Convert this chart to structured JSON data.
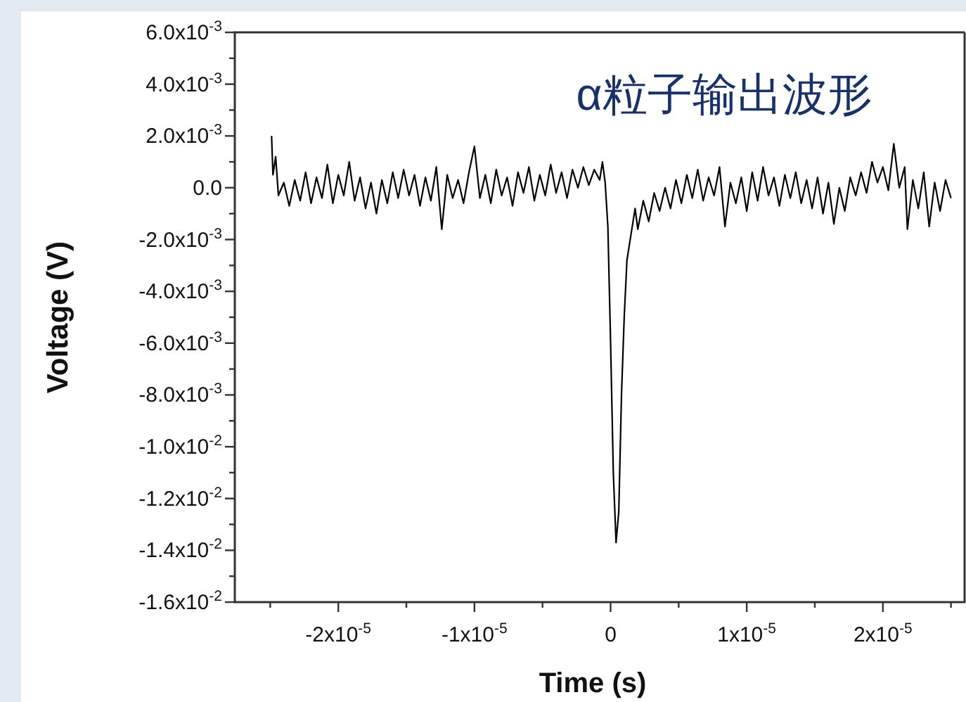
{
  "chart_data": {
    "type": "line",
    "title": "α粒子输出波形",
    "xlabel": "Time (s)",
    "ylabel": "Voltage (V)",
    "xlim": [
      -2.76e-05,
      2.6e-05
    ],
    "ylim": [
      -0.016,
      0.006
    ],
    "xticks": [
      {
        "value": -2.5e-05,
        "label": null
      },
      {
        "value": -2e-05,
        "label": "-2x10$^{-5}$"
      },
      {
        "value": -1.5e-05,
        "label": null
      },
      {
        "value": -1e-05,
        "label": "-1x10$^{-5}$"
      },
      {
        "value": -5e-06,
        "label": null
      },
      0,
      {
        "value": 5e-06,
        "label": null
      },
      {
        "value": 1e-05,
        "label": "1x10$^{-5}$"
      },
      {
        "value": 1.5e-05,
        "label": null
      },
      {
        "value": 2e-05,
        "label": "2x10$^{-5}$"
      },
      {
        "value": 2.5e-05,
        "label": null
      }
    ],
    "yticks": [
      {
        "value": 0.006,
        "label": "6.0x10$^{-3}$"
      },
      {
        "value": 0.005,
        "label": null
      },
      {
        "value": 0.004,
        "label": "4.0x10$^{-3}$"
      },
      {
        "value": 0.003,
        "label": null
      },
      {
        "value": 0.002,
        "label": "2.0x10$^{-3}$"
      },
      {
        "value": 0.001,
        "label": null
      },
      {
        "value": 0,
        "label": "0.0"
      },
      {
        "value": -0.001,
        "label": null
      },
      {
        "value": -0.002,
        "label": "-2.0x10$^{-3}$"
      },
      {
        "value": -0.003,
        "label": null
      },
      {
        "value": -0.004,
        "label": "-4.0x10$^{-3}$"
      },
      {
        "value": -0.005,
        "label": null
      },
      {
        "value": -0.006,
        "label": "-6.0x10$^{-3}$"
      },
      {
        "value": -0.007,
        "label": null
      },
      {
        "value": -0.008,
        "label": "-8.0x10$^{-3}$"
      },
      {
        "value": -0.009,
        "label": null
      },
      {
        "value": -0.01,
        "label": "-1.0x10$^{-2}$"
      },
      {
        "value": -0.011,
        "label": null
      },
      {
        "value": -0.012,
        "label": "-1.2x10$^{-2}$"
      },
      {
        "value": -0.013,
        "label": null
      },
      {
        "value": -0.014,
        "label": "-1.4x10$^{-2}$"
      },
      {
        "value": -0.015,
        "label": null
      },
      {
        "value": -0.016,
        "label": "-1.6x10$^{-2}$"
      }
    ],
    "grid": false,
    "marker": "none",
    "line_style": "solid",
    "series": [
      {
        "color": "#000000",
        "x": [
          -2.49e-05,
          -2.48e-05,
          -2.46e-05,
          -2.44e-05,
          -2.4e-05,
          -2.36e-05,
          -2.32e-05,
          -2.28e-05,
          -2.24e-05,
          -2.2e-05,
          -2.16e-05,
          -2.12e-05,
          -2.08e-05,
          -2.04e-05,
          -2e-05,
          -1.96e-05,
          -1.92e-05,
          -1.88e-05,
          -1.84e-05,
          -1.8e-05,
          -1.76e-05,
          -1.72e-05,
          -1.68e-05,
          -1.64e-05,
          -1.6e-05,
          -1.56e-05,
          -1.52e-05,
          -1.48e-05,
          -1.44e-05,
          -1.4e-05,
          -1.36e-05,
          -1.32e-05,
          -1.28e-05,
          -1.24e-05,
          -1.2e-05,
          -1.16e-05,
          -1.12e-05,
          -1.08e-05,
          -1.04e-05,
          -1e-05,
          -9.6e-06,
          -9.2e-06,
          -8.8e-06,
          -8.4e-06,
          -8e-06,
          -7.6e-06,
          -7.2e-06,
          -6.8e-06,
          -6.4e-06,
          -6e-06,
          -5.6e-06,
          -5.2e-06,
          -4.8e-06,
          -4.4e-06,
          -4e-06,
          -3.6e-06,
          -3.2e-06,
          -2.8e-06,
          -2.4e-06,
          -2e-06,
          -1.6e-06,
          -1.2e-06,
          -8e-07,
          -6e-07,
          -4e-07,
          -2e-07,
          0,
          2e-07,
          4e-07,
          6e-07,
          8e-07,
          1e-06,
          1.2e-06,
          1.5e-06,
          1.8e-06,
          2e-06,
          2.4e-06,
          2.8e-06,
          3.2e-06,
          3.6e-06,
          4e-06,
          4.4e-06,
          4.8e-06,
          5.2e-06,
          5.6e-06,
          6e-06,
          6.4e-06,
          6.8e-06,
          7.2e-06,
          7.6e-06,
          8e-06,
          8.4e-06,
          8.8e-06,
          9.2e-06,
          9.6e-06,
          1e-05,
          1.04e-05,
          1.08e-05,
          1.12e-05,
          1.16e-05,
          1.2e-05,
          1.24e-05,
          1.28e-05,
          1.32e-05,
          1.36e-05,
          1.4e-05,
          1.44e-05,
          1.48e-05,
          1.52e-05,
          1.56e-05,
          1.6e-05,
          1.64e-05,
          1.68e-05,
          1.72e-05,
          1.76e-05,
          1.8e-05,
          1.84e-05,
          1.88e-05,
          1.92e-05,
          1.96e-05,
          2e-05,
          2.04e-05,
          2.08e-05,
          2.12e-05,
          2.16e-05,
          2.18e-05,
          2.22e-05,
          2.26e-05,
          2.3e-05,
          2.34e-05,
          2.38e-05,
          2.42e-05,
          2.46e-05,
          2.5e-05
        ],
        "values": [
          0.002,
          0.0005,
          0.0012,
          -0.0003,
          0.0002,
          -0.0007,
          0.0003,
          -0.0005,
          0.0006,
          -0.0006,
          0.0004,
          -0.0004,
          0.0009,
          -0.0006,
          0.0005,
          -0.0003,
          0.001,
          -0.0005,
          0.0004,
          -0.0008,
          0.0002,
          -0.001,
          0.0003,
          -0.0006,
          0.0006,
          -0.0004,
          0.0007,
          -0.0003,
          0.0005,
          -0.0007,
          0.0004,
          -0.0005,
          0.0008,
          -0.0016,
          0.0005,
          -0.0004,
          0.0003,
          -0.0006,
          0.0006,
          0.0016,
          -0.0004,
          0.0005,
          -0.0006,
          0.0007,
          -0.0003,
          0.0004,
          -0.0007,
          0.0006,
          -0.0002,
          0.0008,
          -0.0005,
          0.0005,
          -0.0003,
          0.0009,
          -0.0002,
          0.0006,
          -0.0004,
          0.0007,
          0.0,
          0.0008,
          0.0001,
          0.0007,
          0.0003,
          0.001,
          0.0002,
          -0.0015,
          -0.006,
          -0.011,
          -0.0137,
          -0.0125,
          -0.008,
          -0.005,
          -0.0028,
          -0.0018,
          -0.0008,
          -0.0016,
          -0.0005,
          -0.0013,
          -0.0002,
          -0.0009,
          0.0,
          -0.0008,
          0.0003,
          -0.0006,
          0.0005,
          -0.0004,
          0.0007,
          -0.0005,
          0.0004,
          -0.0003,
          0.0008,
          -0.0015,
          0.0002,
          -0.0006,
          0.0004,
          -0.0009,
          0.0006,
          -0.0005,
          0.0008,
          -0.0003,
          0.0004,
          -0.0007,
          0.0005,
          -0.0004,
          0.0006,
          -0.0006,
          0.0003,
          -0.0008,
          0.0004,
          -0.001,
          0.0002,
          -0.0014,
          0.0,
          -0.0009,
          0.0004,
          -0.0003,
          0.0006,
          -0.0002,
          0.001,
          0.0002,
          0.0008,
          -0.0001,
          0.0017,
          0.0,
          0.0008,
          -0.0016,
          0.0003,
          -0.0008,
          0.0006,
          -0.0015,
          0.0002,
          -0.0009,
          0.0003,
          -0.0004
        ]
      }
    ]
  }
}
